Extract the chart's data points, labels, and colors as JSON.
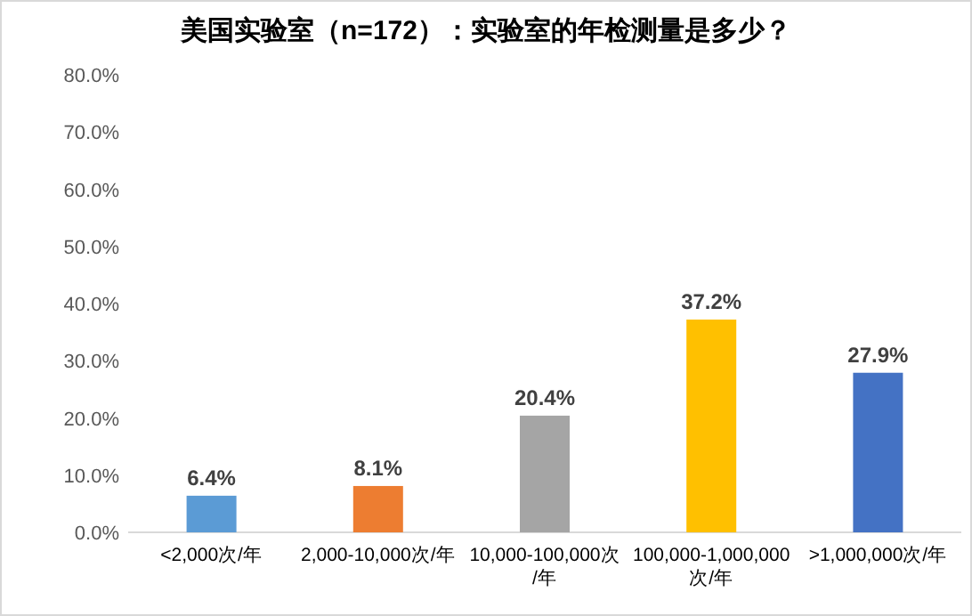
{
  "chart_data": {
    "type": "bar",
    "title": "美国实验室（n=172）：实验室的年检测量是多少？",
    "categories": [
      "<2,000次/年",
      "2,000-10,000次/年",
      "10,000-100,000次/年",
      "100,000-1,000,000次/年",
      ">1,000,000次/年"
    ],
    "values": [
      6.4,
      8.1,
      20.4,
      37.2,
      27.9
    ],
    "colors": [
      "#5b9bd5",
      "#ed7d31",
      "#a5a5a5",
      "#ffc000",
      "#4472c4"
    ],
    "value_labels": [
      "6.4%",
      "8.1%",
      "20.4%",
      "37.2%",
      "27.9%"
    ],
    "ylim": [
      0,
      80
    ],
    "yticks": [
      {
        "value": 0,
        "label": "0.0%"
      },
      {
        "value": 10,
        "label": "10.0%"
      },
      {
        "value": 20,
        "label": "20.0%"
      },
      {
        "value": 30,
        "label": "30.0%"
      },
      {
        "value": 40,
        "label": "40.0%"
      },
      {
        "value": 50,
        "label": "50.0%"
      },
      {
        "value": 60,
        "label": "60.0%"
      },
      {
        "value": 70,
        "label": "70.0%"
      },
      {
        "value": 80,
        "label": "80.0%"
      }
    ],
    "grid": false
  }
}
